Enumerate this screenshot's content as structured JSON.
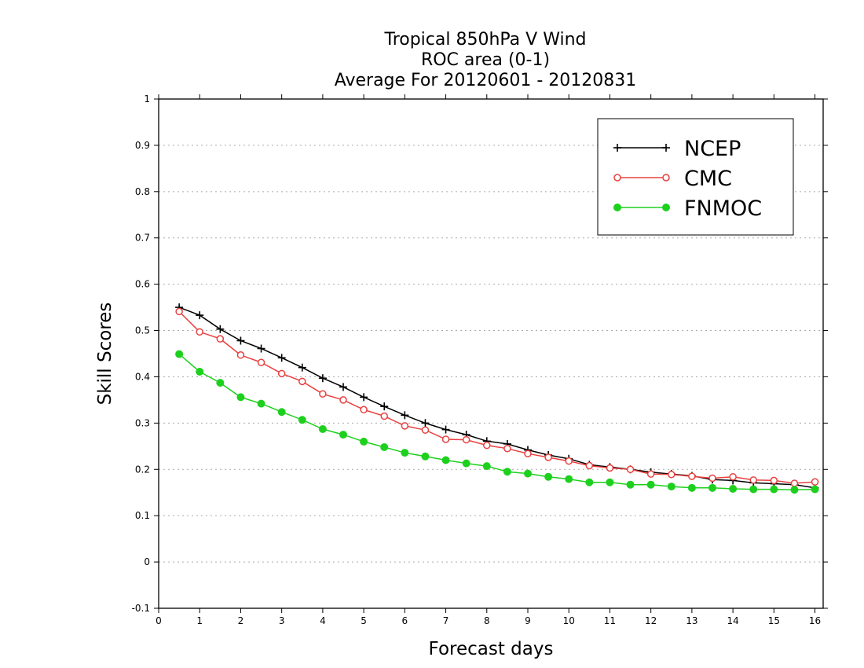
{
  "chart_data": {
    "type": "line",
    "title": [
      "Tropical 850hPa V Wind",
      "ROC area (0-1)",
      "Average For 20120601 - 20120831"
    ],
    "xlabel": "Forecast days",
    "ylabel": "Skill Scores",
    "xlim": [
      0,
      16.2
    ],
    "ylim": [
      -0.1,
      1
    ],
    "xticks": [
      0,
      1,
      2,
      3,
      4,
      5,
      6,
      7,
      8,
      9,
      10,
      11,
      12,
      13,
      14,
      15,
      16
    ],
    "yticks": [
      -0.1,
      0,
      0.1,
      0.2,
      0.3,
      0.4,
      0.5,
      0.6,
      0.7,
      0.8,
      0.9,
      1
    ],
    "ytick_labels": [
      "-0.1",
      "0",
      "0.1",
      "0.2",
      "0.3",
      "0.4",
      "0.5",
      "0.6",
      "0.7",
      "0.8",
      "0.9",
      "1"
    ],
    "grid": "horizontal dotted",
    "legend_position": "top-right",
    "x": [
      0.5,
      1,
      1.5,
      2,
      2.5,
      3,
      3.5,
      4,
      4.5,
      5,
      5.5,
      6,
      6.5,
      7,
      7.5,
      8,
      8.5,
      9,
      9.5,
      10,
      10.5,
      11,
      11.5,
      12,
      12.5,
      13,
      13.5,
      14,
      14.5,
      15,
      15.5,
      16
    ],
    "series": [
      {
        "name": "NCEP",
        "color": "#000000",
        "marker": "plus",
        "values": [
          0.55,
          0.533,
          0.503,
          0.478,
          0.461,
          0.441,
          0.42,
          0.397,
          0.378,
          0.356,
          0.336,
          0.317,
          0.3,
          0.286,
          0.275,
          0.261,
          0.255,
          0.242,
          0.231,
          0.223,
          0.21,
          0.205,
          0.2,
          0.194,
          0.19,
          0.186,
          0.178,
          0.176,
          0.171,
          0.169,
          0.167,
          0.16
        ]
      },
      {
        "name": "CMC",
        "color": "#e8403f",
        "marker": "open-circle",
        "values": [
          0.541,
          0.497,
          0.482,
          0.447,
          0.431,
          0.407,
          0.39,
          0.363,
          0.35,
          0.329,
          0.315,
          0.294,
          0.285,
          0.265,
          0.264,
          0.252,
          0.245,
          0.234,
          0.226,
          0.218,
          0.208,
          0.203,
          0.2,
          0.19,
          0.189,
          0.185,
          0.181,
          0.184,
          0.177,
          0.176,
          0.17,
          0.173
        ]
      },
      {
        "name": "FNMOC",
        "color": "#1ed01e",
        "marker": "filled-circle",
        "values": [
          0.449,
          0.411,
          0.387,
          0.356,
          0.342,
          0.324,
          0.307,
          0.287,
          0.275,
          0.26,
          0.248,
          0.236,
          0.228,
          0.22,
          0.213,
          0.207,
          0.195,
          0.191,
          0.184,
          0.179,
          0.172,
          0.172,
          0.167,
          0.167,
          0.163,
          0.16,
          0.16,
          0.158,
          0.157,
          0.157,
          0.156,
          0.157
        ]
      }
    ]
  }
}
